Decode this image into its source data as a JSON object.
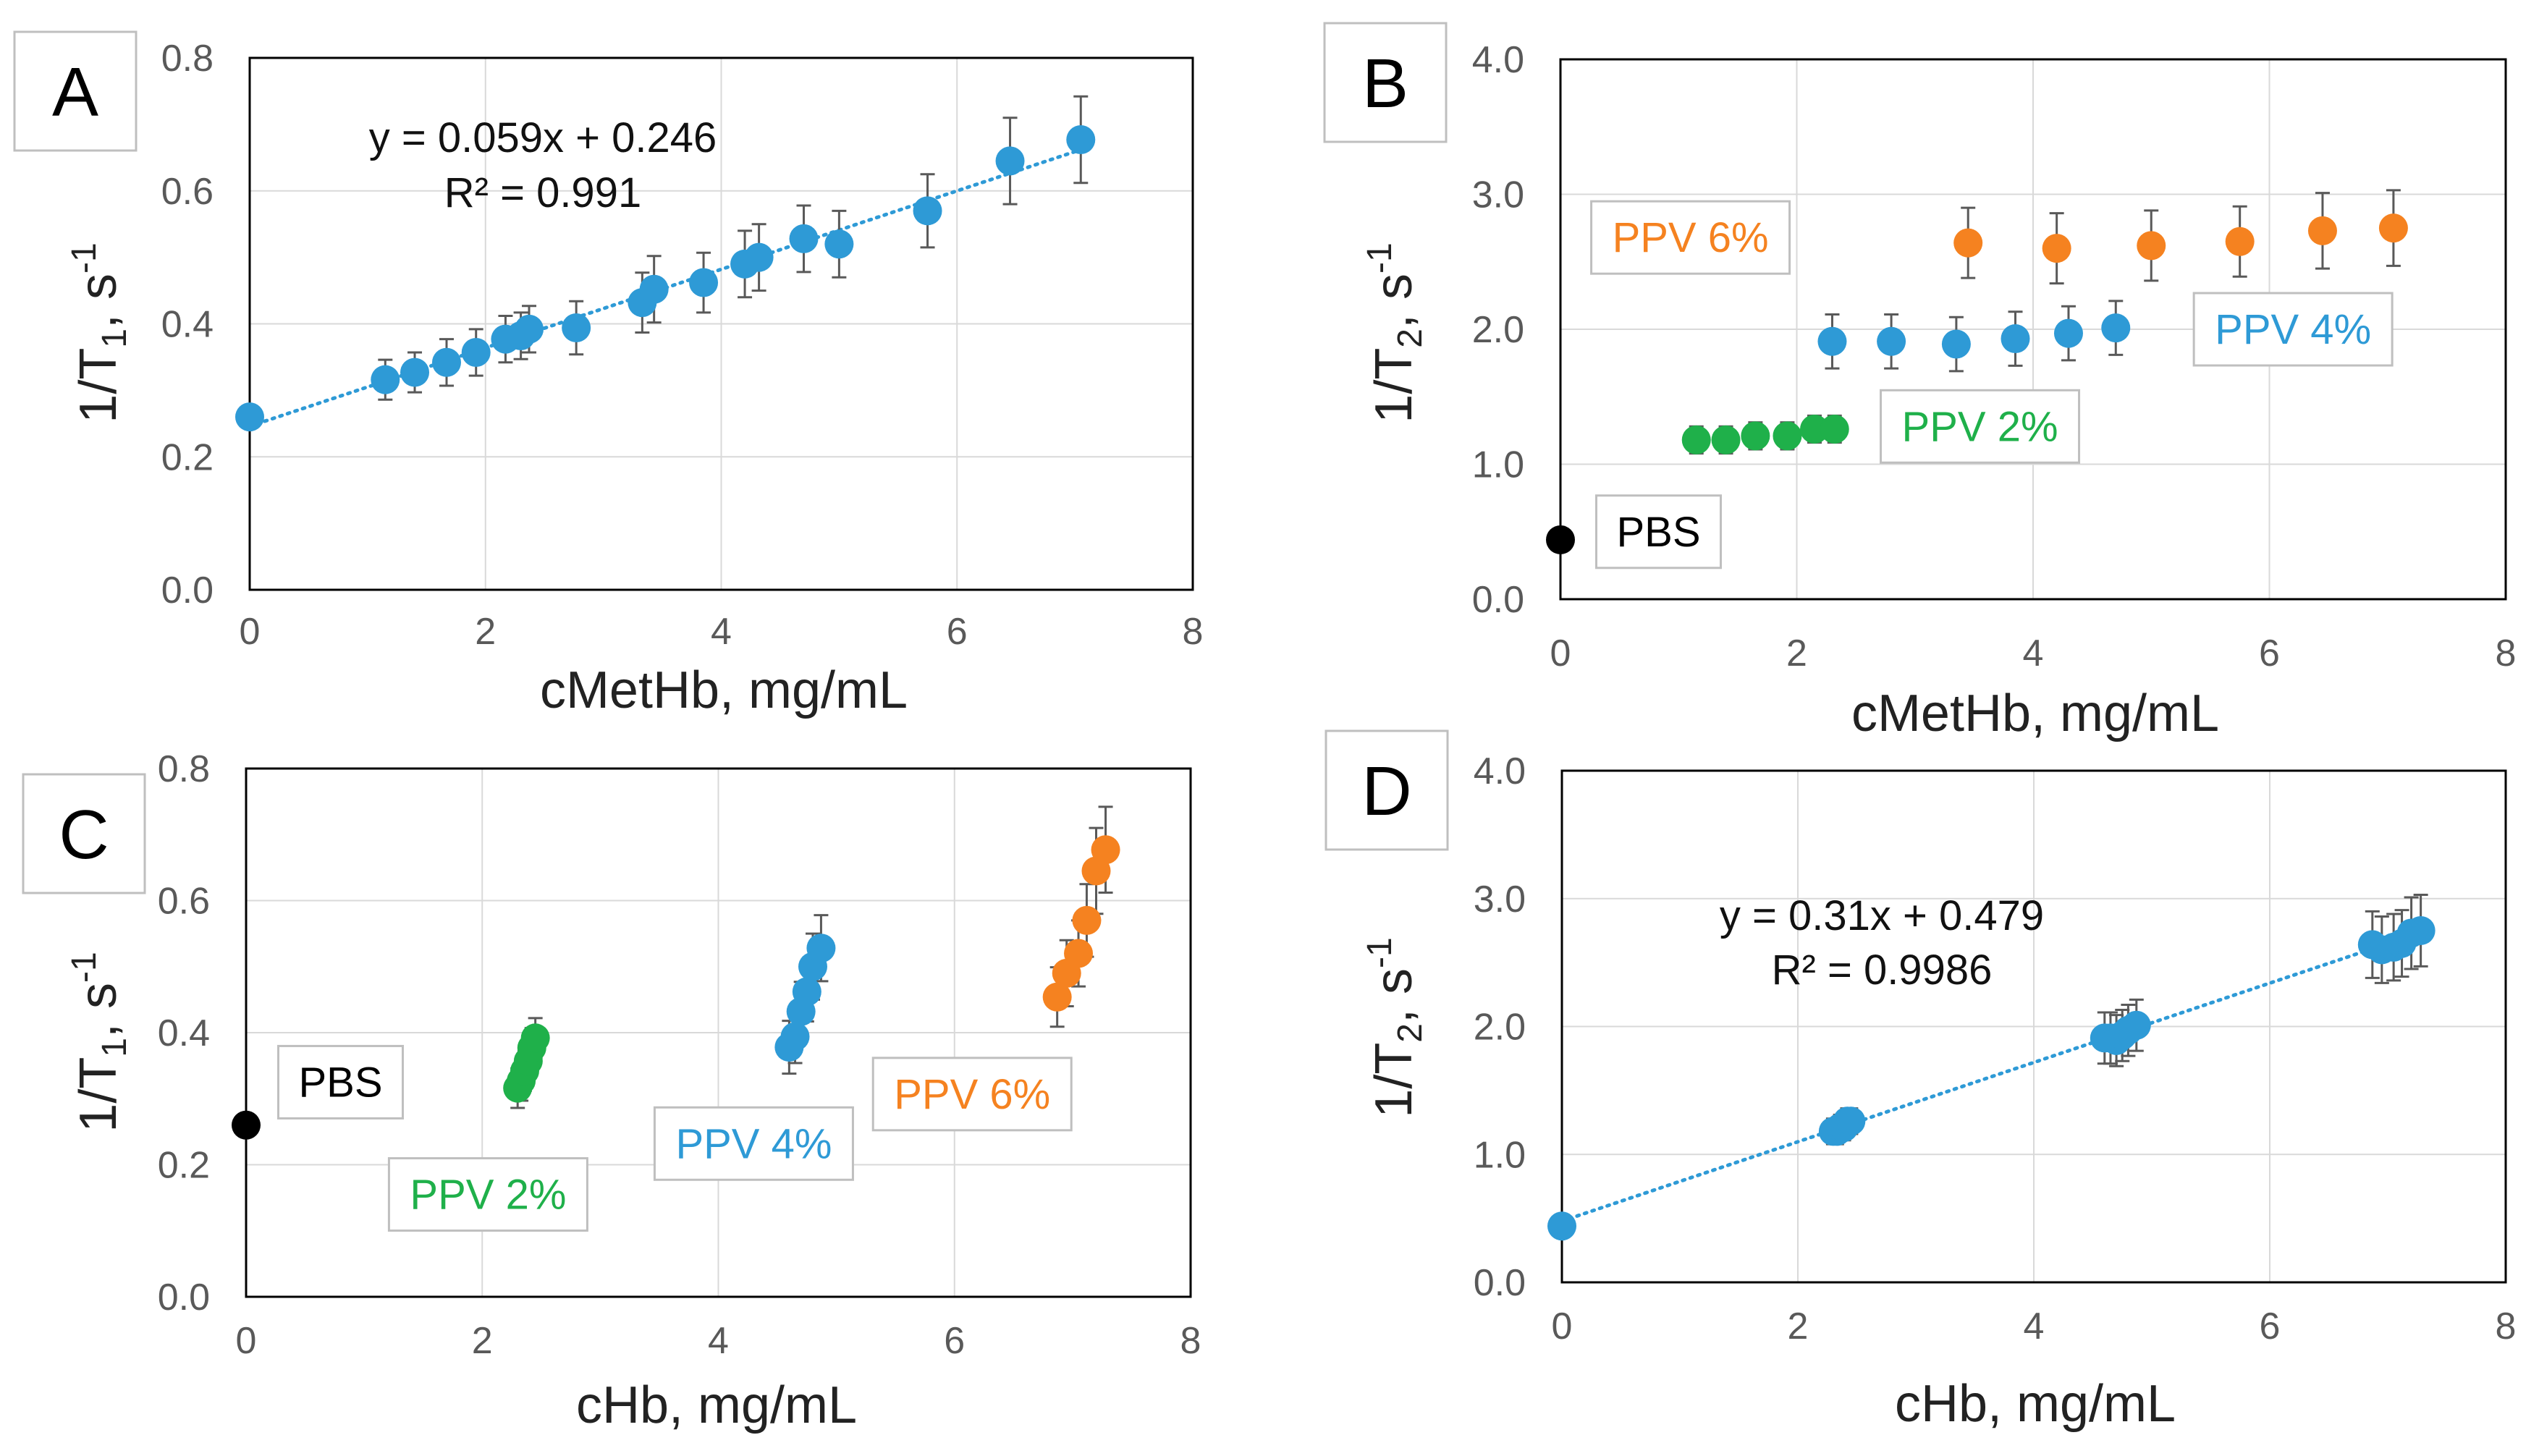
{
  "figure_title": "",
  "colors": {
    "pbs": "#000000",
    "ppv2": "#1fb04a",
    "ppv4": "#2e9ad6",
    "ppv6": "#f58220",
    "grid": "#d9d9d9",
    "axis": "#000000",
    "trend": "#2e9ad6",
    "errorbar": "#595959"
  },
  "chart_data": [
    {
      "panel": "A",
      "type": "scatter",
      "title": "",
      "xlabel": "cMetHb, mg/mL",
      "ylabel_main": "1/T",
      "ylabel_sub": "1",
      "ylabel_tail": ", s",
      "ylabel_sup": "-1",
      "xlim": [
        0,
        8
      ],
      "ylim": [
        0,
        0.8
      ],
      "xticks": [
        "0",
        "2",
        "4",
        "6",
        "8"
      ],
      "yticks": [
        "0.0",
        "0.2",
        "0.4",
        "0.6",
        "0.8"
      ],
      "grid": true,
      "legend": "none",
      "series": [
        {
          "name": "data",
          "color": "#2e9ad6",
          "points": [
            {
              "x": 0,
              "y": 0.26,
              "err": 0
            },
            {
              "x": 1.15,
              "y": 0.316,
              "err": 0.03
            },
            {
              "x": 1.4,
              "y": 0.327,
              "err": 0.03
            },
            {
              "x": 1.67,
              "y": 0.342,
              "err": 0.035
            },
            {
              "x": 1.92,
              "y": 0.357,
              "err": 0.035
            },
            {
              "x": 2.17,
              "y": 0.377,
              "err": 0.035
            },
            {
              "x": 2.3,
              "y": 0.382,
              "err": 0.035
            },
            {
              "x": 2.37,
              "y": 0.392,
              "err": 0.035
            },
            {
              "x": 2.77,
              "y": 0.394,
              "err": 0.04
            },
            {
              "x": 3.33,
              "y": 0.432,
              "err": 0.045
            },
            {
              "x": 3.43,
              "y": 0.452,
              "err": 0.05
            },
            {
              "x": 3.85,
              "y": 0.462,
              "err": 0.045
            },
            {
              "x": 4.2,
              "y": 0.49,
              "err": 0.05
            },
            {
              "x": 4.32,
              "y": 0.5,
              "err": 0.05
            },
            {
              "x": 4.7,
              "y": 0.528,
              "err": 0.05
            },
            {
              "x": 5.0,
              "y": 0.52,
              "err": 0.05
            },
            {
              "x": 5.75,
              "y": 0.57,
              "err": 0.055
            },
            {
              "x": 6.45,
              "y": 0.645,
              "err": 0.065
            },
            {
              "x": 7.05,
              "y": 0.677,
              "err": 0.065
            }
          ]
        }
      ],
      "trendline": {
        "slope": 0.059,
        "intercept": 0.246,
        "x0": 0,
        "x1": 7.05
      },
      "equation": "y = 0.059x + 0.246",
      "r2": "R² = 0.991",
      "labels": []
    },
    {
      "panel": "B",
      "type": "scatter",
      "title": "",
      "xlabel": "cMetHb, mg/mL",
      "ylabel_main": "1/T",
      "ylabel_sub": "2",
      "ylabel_tail": ", s",
      "ylabel_sup": "-1",
      "xlim": [
        0,
        8
      ],
      "ylim": [
        0,
        4
      ],
      "xticks": [
        "0",
        "2",
        "4",
        "6",
        "8"
      ],
      "yticks": [
        "0.0",
        "1.0",
        "2.0",
        "3.0",
        "4.0"
      ],
      "grid": true,
      "legend": "none",
      "series": [
        {
          "name": "PBS",
          "color": "#000000",
          "points": [
            {
              "x": 0,
              "y": 0.44,
              "err": 0
            }
          ]
        },
        {
          "name": "PPV 2%",
          "color": "#1fb04a",
          "points": [
            {
              "x": 1.15,
              "y": 1.18,
              "err": 0.1
            },
            {
              "x": 1.4,
              "y": 1.18,
              "err": 0.1
            },
            {
              "x": 1.65,
              "y": 1.21,
              "err": 0.1
            },
            {
              "x": 1.92,
              "y": 1.21,
              "err": 0.1
            },
            {
              "x": 2.15,
              "y": 1.26,
              "err": 0.1
            },
            {
              "x": 2.32,
              "y": 1.26,
              "err": 0.1
            }
          ]
        },
        {
          "name": "PPV 4%",
          "color": "#2e9ad6",
          "points": [
            {
              "x": 2.3,
              "y": 1.91,
              "err": 0.2
            },
            {
              "x": 2.8,
              "y": 1.91,
              "err": 0.2
            },
            {
              "x": 3.35,
              "y": 1.89,
              "err": 0.2
            },
            {
              "x": 3.85,
              "y": 1.93,
              "err": 0.2
            },
            {
              "x": 4.3,
              "y": 1.97,
              "err": 0.2
            },
            {
              "x": 4.7,
              "y": 2.01,
              "err": 0.2
            }
          ]
        },
        {
          "name": "PPV 6%",
          "color": "#f58220",
          "points": [
            {
              "x": 3.45,
              "y": 2.64,
              "err": 0.26
            },
            {
              "x": 4.2,
              "y": 2.6,
              "err": 0.26
            },
            {
              "x": 5.0,
              "y": 2.62,
              "err": 0.26
            },
            {
              "x": 5.75,
              "y": 2.65,
              "err": 0.26
            },
            {
              "x": 6.45,
              "y": 2.73,
              "err": 0.28
            },
            {
              "x": 7.05,
              "y": 2.75,
              "err": 0.28
            }
          ]
        }
      ],
      "labels": [
        {
          "text": "PBS",
          "color": "#000000",
          "x": 0.83,
          "y": 0.5
        },
        {
          "text": "PPV 2%",
          "color": "#1fb04a",
          "x": 3.55,
          "y": 1.28
        },
        {
          "text": "PPV 4%",
          "color": "#2e9ad6",
          "x": 6.2,
          "y": 2.0
        },
        {
          "text": "PPV 6%",
          "color": "#f58220",
          "x": 1.1,
          "y": 2.68
        }
      ]
    },
    {
      "panel": "C",
      "type": "scatter",
      "title": "",
      "xlabel": "cHb, mg/mL",
      "ylabel_main": "1/T",
      "ylabel_sub": "1",
      "ylabel_tail": ", s",
      "ylabel_sup": "-1",
      "xlim": [
        0,
        8
      ],
      "ylim": [
        0,
        0.8
      ],
      "xticks": [
        "0",
        "2",
        "4",
        "6",
        "8"
      ],
      "yticks": [
        "0.0",
        "0.2",
        "0.4",
        "0.6",
        "0.8"
      ],
      "grid": true,
      "legend": "none",
      "series": [
        {
          "name": "PBS",
          "color": "#000000",
          "points": [
            {
              "x": 0,
              "y": 0.26,
              "err": 0
            }
          ]
        },
        {
          "name": "PPV 2%",
          "color": "#1fb04a",
          "points": [
            {
              "x": 2.3,
              "y": 0.316,
              "err": 0.03
            },
            {
              "x": 2.33,
              "y": 0.327,
              "err": 0.03
            },
            {
              "x": 2.36,
              "y": 0.342,
              "err": 0.03
            },
            {
              "x": 2.39,
              "y": 0.357,
              "err": 0.03
            },
            {
              "x": 2.42,
              "y": 0.377,
              "err": 0.03
            },
            {
              "x": 2.45,
              "y": 0.392,
              "err": 0.03
            }
          ]
        },
        {
          "name": "PPV 4%",
          "color": "#2e9ad6",
          "points": [
            {
              "x": 4.6,
              "y": 0.378,
              "err": 0.04
            },
            {
              "x": 4.65,
              "y": 0.394,
              "err": 0.04
            },
            {
              "x": 4.7,
              "y": 0.432,
              "err": 0.045
            },
            {
              "x": 4.75,
              "y": 0.462,
              "err": 0.045
            },
            {
              "x": 4.8,
              "y": 0.5,
              "err": 0.05
            },
            {
              "x": 4.87,
              "y": 0.528,
              "err": 0.05
            }
          ]
        },
        {
          "name": "PPV 6%",
          "color": "#f58220",
          "points": [
            {
              "x": 6.87,
              "y": 0.454,
              "err": 0.045
            },
            {
              "x": 6.95,
              "y": 0.49,
              "err": 0.05
            },
            {
              "x": 7.05,
              "y": 0.52,
              "err": 0.05
            },
            {
              "x": 7.12,
              "y": 0.57,
              "err": 0.055
            },
            {
              "x": 7.2,
              "y": 0.645,
              "err": 0.065
            },
            {
              "x": 7.28,
              "y": 0.677,
              "err": 0.065
            }
          ]
        }
      ],
      "labels": [
        {
          "text": "PBS",
          "color": "#000000",
          "x": 0.8,
          "y": 0.325
        },
        {
          "text": "PPV 2%",
          "color": "#1fb04a",
          "x": 2.05,
          "y": 0.155
        },
        {
          "text": "PPV 4%",
          "color": "#2e9ad6",
          "x": 4.3,
          "y": 0.232
        },
        {
          "text": "PPV 6%",
          "color": "#f58220",
          "x": 6.15,
          "y": 0.307
        }
      ]
    },
    {
      "panel": "D",
      "type": "scatter",
      "title": "",
      "xlabel": "cHb, mg/mL",
      "ylabel_main": "1/T",
      "ylabel_sub": "2",
      "ylabel_tail": ", s",
      "ylabel_sup": "-1",
      "xlim": [
        0,
        8
      ],
      "ylim": [
        0,
        4
      ],
      "xticks": [
        "0",
        "2",
        "4",
        "6",
        "8"
      ],
      "yticks": [
        "0.0",
        "1.0",
        "2.0",
        "3.0",
        "4.0"
      ],
      "grid": true,
      "legend": "none",
      "series": [
        {
          "name": "data",
          "color": "#2e9ad6",
          "points": [
            {
              "x": 0,
              "y": 0.44,
              "err": 0
            },
            {
              "x": 2.3,
              "y": 1.18,
              "err": 0.1
            },
            {
              "x": 2.33,
              "y": 1.18,
              "err": 0.1
            },
            {
              "x": 2.36,
              "y": 1.21,
              "err": 0.1
            },
            {
              "x": 2.39,
              "y": 1.21,
              "err": 0.1
            },
            {
              "x": 2.42,
              "y": 1.26,
              "err": 0.1
            },
            {
              "x": 2.45,
              "y": 1.26,
              "err": 0.1
            },
            {
              "x": 4.6,
              "y": 1.91,
              "err": 0.2
            },
            {
              "x": 4.65,
              "y": 1.91,
              "err": 0.2
            },
            {
              "x": 4.7,
              "y": 1.89,
              "err": 0.2
            },
            {
              "x": 4.75,
              "y": 1.93,
              "err": 0.2
            },
            {
              "x": 4.8,
              "y": 1.97,
              "err": 0.2
            },
            {
              "x": 4.87,
              "y": 2.01,
              "err": 0.2
            },
            {
              "x": 6.87,
              "y": 2.64,
              "err": 0.26
            },
            {
              "x": 6.95,
              "y": 2.6,
              "err": 0.26
            },
            {
              "x": 7.05,
              "y": 2.62,
              "err": 0.26
            },
            {
              "x": 7.12,
              "y": 2.65,
              "err": 0.26
            },
            {
              "x": 7.2,
              "y": 2.73,
              "err": 0.28
            },
            {
              "x": 7.28,
              "y": 2.75,
              "err": 0.28
            }
          ]
        }
      ],
      "trendline": {
        "slope": 0.31,
        "intercept": 0.479,
        "x0": 0,
        "x1": 7.28
      },
      "equation": "y = 0.31x + 0.479",
      "r2": "R² = 0.9986",
      "labels": []
    }
  ]
}
